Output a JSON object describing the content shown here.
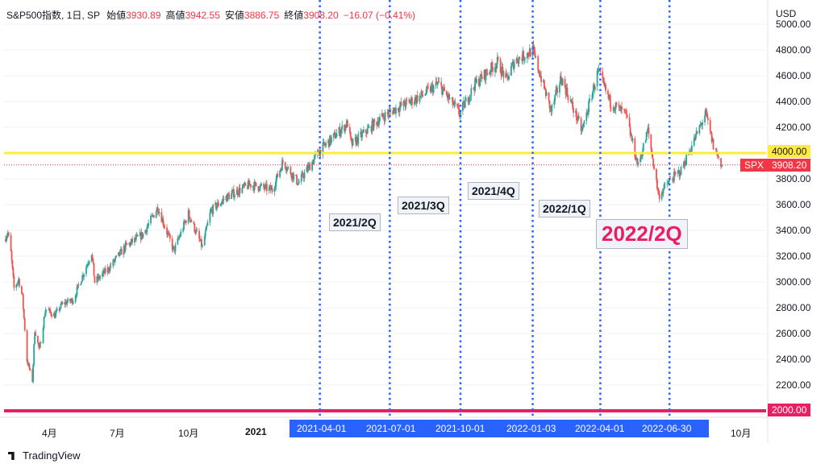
{
  "header": {
    "symbol": "S&P500指数, 1日, SP",
    "open_label": "始値",
    "open": "3930.89",
    "high_label": "高値",
    "high": "3942.55",
    "low_label": "安値",
    "low": "3886.75",
    "close_label": "終値",
    "close": "3908.20",
    "change": "−16.07 (−0.41%)"
  },
  "currency": "USD",
  "price_tags": {
    "symbol_tag": "SPX",
    "last_price": "3908.20",
    "yellow_line": "4000.00",
    "magenta_line": "2000.00"
  },
  "colors": {
    "up": "#26a69a",
    "down": "#ef5350",
    "yellow_line": "#ffeb3b",
    "magenta_line": "#e91e63",
    "quarter_lines": "#2962ff",
    "date_highlight": "#2962ff"
  },
  "chart_data": {
    "type": "candlestick",
    "ylim": [
      2000,
      5000
    ],
    "y_ticks": [
      "5000.00",
      "4800.00",
      "4600.00",
      "4400.00",
      "4200.00",
      "4000.00",
      "3800.00",
      "3600.00",
      "3400.00",
      "3200.00",
      "3000.00",
      "2800.00",
      "2600.00",
      "2400.00",
      "2200.00",
      "2000.00"
    ],
    "x_ticks": [
      "4月",
      "7月",
      "10月",
      "2021",
      "10月"
    ],
    "x_range": [
      "2020-02-15",
      "2022-09-06"
    ],
    "horizontal_lines": [
      4000,
      2000
    ],
    "quarter_markers": [
      "2021-04-01",
      "2021-07-01",
      "2021-10-01",
      "2022-01-03",
      "2022-04-01",
      "2022-06-30"
    ],
    "quarter_labels": [
      "2021/2Q",
      "2021/3Q",
      "2021/4Q",
      "2022/1Q",
      "2022/2Q"
    ],
    "last_close": 3908.2,
    "price_path": [
      [
        "2020-02-15",
        3330
      ],
      [
        "2020-02-20",
        3380
      ],
      [
        "2020-02-24",
        3225
      ],
      [
        "2020-02-28",
        2950
      ],
      [
        "2020-03-05",
        3020
      ],
      [
        "2020-03-10",
        2880
      ],
      [
        "2020-03-16",
        2390
      ],
      [
        "2020-03-23",
        2237
      ],
      [
        "2020-03-26",
        2630
      ],
      [
        "2020-04-01",
        2470
      ],
      [
        "2020-04-09",
        2790
      ],
      [
        "2020-04-21",
        2740
      ],
      [
        "2020-05-01",
        2830
      ],
      [
        "2020-05-15",
        2860
      ],
      [
        "2020-06-08",
        3230
      ],
      [
        "2020-06-12",
        3000
      ],
      [
        "2020-07-01",
        3110
      ],
      [
        "2020-07-22",
        3275
      ],
      [
        "2020-08-14",
        3370
      ],
      [
        "2020-09-02",
        3580
      ],
      [
        "2020-09-23",
        3240
      ],
      [
        "2020-10-12",
        3530
      ],
      [
        "2020-10-30",
        3270
      ],
      [
        "2020-11-10",
        3550
      ],
      [
        "2020-12-01",
        3660
      ],
      [
        "2020-12-31",
        3756
      ],
      [
        "2021-01-29",
        3714
      ],
      [
        "2021-02-12",
        3934
      ],
      [
        "2021-03-04",
        3768
      ],
      [
        "2021-04-01",
        4020
      ],
      [
        "2021-05-07",
        4230
      ],
      [
        "2021-05-12",
        4063
      ],
      [
        "2021-06-15",
        4250
      ],
      [
        "2021-07-01",
        4320
      ],
      [
        "2021-08-10",
        4440
      ],
      [
        "2021-09-02",
        4537
      ],
      [
        "2021-09-30",
        4307
      ],
      [
        "2021-10-20",
        4536
      ],
      [
        "2021-11-18",
        4704
      ],
      [
        "2021-11-30",
        4567
      ],
      [
        "2021-12-10",
        4712
      ],
      [
        "2022-01-03",
        4796
      ],
      [
        "2022-01-27",
        4326
      ],
      [
        "2022-02-09",
        4587
      ],
      [
        "2022-03-08",
        4170
      ],
      [
        "2022-03-29",
        4631
      ],
      [
        "2022-04-14",
        4392
      ],
      [
        "2022-05-04",
        4300
      ],
      [
        "2022-05-20",
        3901
      ],
      [
        "2022-06-02",
        4176
      ],
      [
        "2022-06-16",
        3667
      ],
      [
        "2022-06-30",
        3785
      ],
      [
        "2022-07-15",
        3863
      ],
      [
        "2022-08-16",
        4305
      ],
      [
        "2022-08-26",
        4057
      ],
      [
        "2022-09-06",
        3908
      ]
    ]
  },
  "footer": {
    "brand": "TradingView"
  }
}
